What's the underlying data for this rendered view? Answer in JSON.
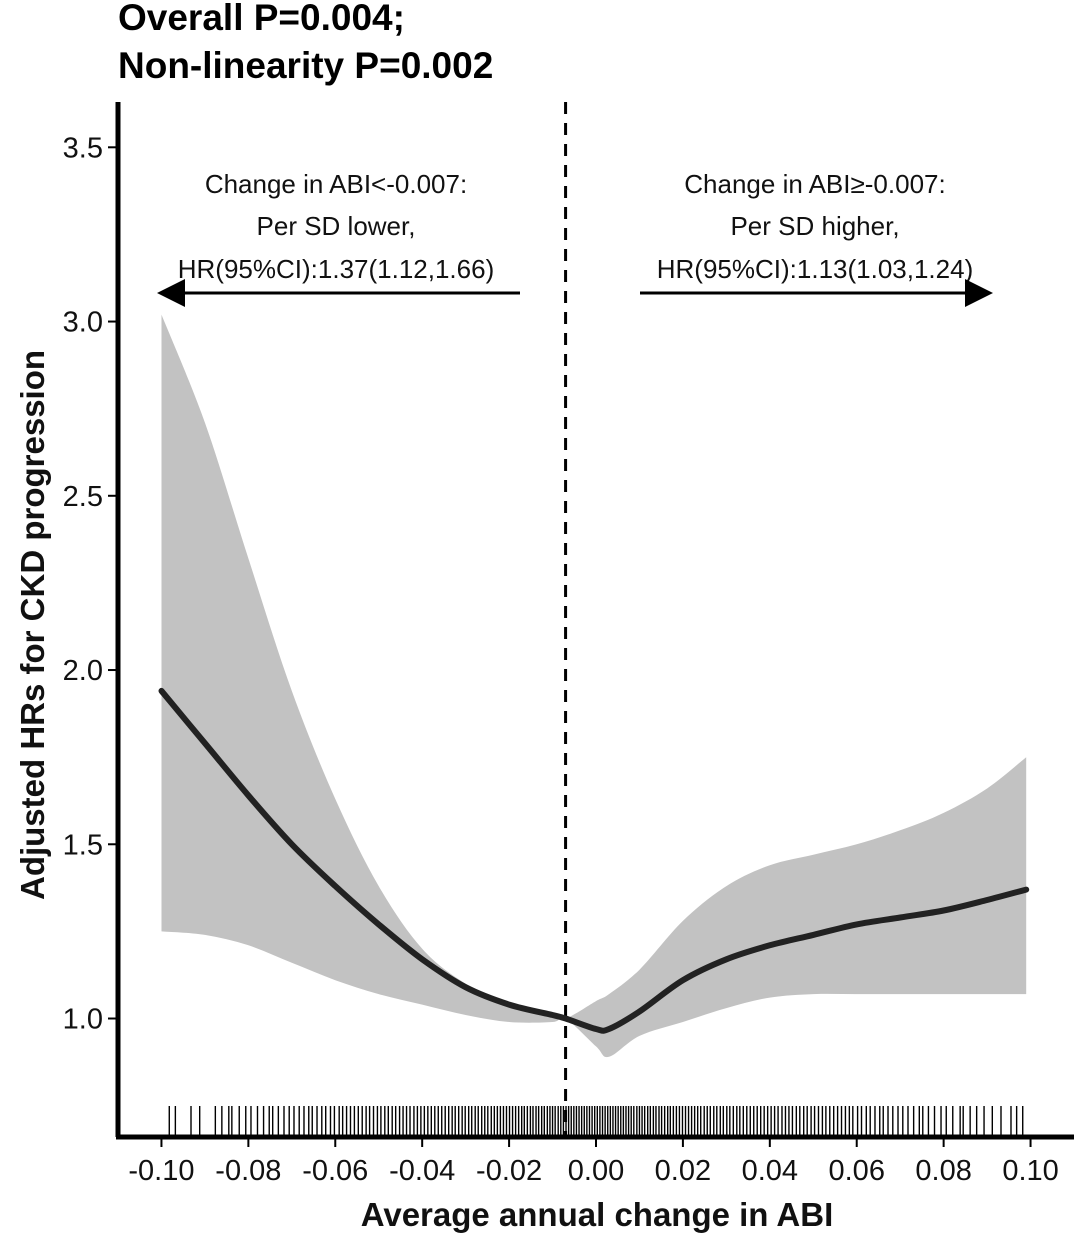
{
  "chart_data": {
    "type": "line",
    "title_lines": [
      "Overall P=0.004;",
      "Non-linearity P=0.002"
    ],
    "xlabel": "Average annual change in ABI",
    "ylabel": "Adjusted HRs for CKD progression",
    "xlim": [
      -0.11,
      0.11
    ],
    "ylim": [
      0.66,
      3.63
    ],
    "x_ticks": [
      -0.1,
      -0.08,
      -0.06,
      -0.04,
      -0.02,
      0.0,
      0.02,
      0.04,
      0.06,
      0.08,
      0.1
    ],
    "x_tick_labels": [
      "-0.10",
      "-0.08",
      "-0.06",
      "-0.04",
      "-0.02",
      "0.00",
      "0.02",
      "0.04",
      "0.06",
      "0.08",
      "0.10"
    ],
    "y_ticks": [
      1.0,
      1.5,
      2.0,
      2.5,
      3.0,
      3.5
    ],
    "y_tick_labels": [
      "1.0",
      "1.5",
      "2.0",
      "2.5",
      "3.0",
      "3.5"
    ],
    "grid": false,
    "reference_line_x": -0.007,
    "colors": {
      "line": "#222222",
      "band": "#c2c2c2",
      "axis": "#000000"
    },
    "series": [
      {
        "values_x": [
          -0.1,
          -0.09,
          -0.08,
          -0.07,
          -0.06,
          -0.05,
          -0.04,
          -0.03,
          -0.02,
          -0.01,
          -0.007,
          0.0,
          0.003,
          0.01,
          0.02,
          0.03,
          0.04,
          0.05,
          0.06,
          0.07,
          0.08,
          0.09,
          0.099
        ],
        "values_y": [
          1.94,
          1.79,
          1.64,
          1.5,
          1.38,
          1.27,
          1.17,
          1.09,
          1.04,
          1.01,
          1.0,
          0.97,
          0.97,
          1.02,
          1.11,
          1.17,
          1.21,
          1.24,
          1.27,
          1.29,
          1.31,
          1.34,
          1.37
        ],
        "ci_lower": [
          1.25,
          1.24,
          1.21,
          1.16,
          1.11,
          1.07,
          1.04,
          1.01,
          0.99,
          0.99,
          1.0,
          0.92,
          0.89,
          0.95,
          0.99,
          1.03,
          1.06,
          1.07,
          1.07,
          1.07,
          1.07,
          1.07,
          1.07
        ],
        "ci_upper": [
          3.02,
          2.71,
          2.32,
          1.94,
          1.63,
          1.38,
          1.2,
          1.1,
          1.04,
          1.01,
          1.0,
          1.05,
          1.07,
          1.14,
          1.28,
          1.38,
          1.44,
          1.47,
          1.5,
          1.54,
          1.59,
          1.66,
          1.75
        ]
      }
    ],
    "annotations": [
      {
        "lines": [
          "Change in ABI<-0.007:",
          "Per SD lower,",
          "HR(95%CI):1.37(1.12,1.66)"
        ],
        "arrow_direction": "left"
      },
      {
        "lines": [
          "Change in ABI≥-0.007:",
          "Per SD higher,",
          "HR(95%CI):1.13(1.03,1.24)"
        ],
        "arrow_direction": "right"
      }
    ],
    "rug_x": [
      -0.0982,
      -0.0968,
      -0.0932,
      -0.0912,
      -0.0876,
      -0.0861,
      -0.0845,
      -0.0838,
      -0.0821,
      -0.0806,
      -0.0794,
      -0.0779,
      -0.0765,
      -0.0752,
      -0.0744,
      -0.0731,
      -0.0718,
      -0.0706,
      -0.0695,
      -0.0683,
      -0.0672,
      -0.0661,
      -0.0653,
      -0.0642,
      -0.0631,
      -0.0622,
      -0.0611,
      -0.0602,
      -0.0591,
      -0.0583,
      -0.0574,
      -0.0565,
      -0.0556,
      -0.0547,
      -0.0538,
      -0.0529,
      -0.0521,
      -0.0512,
      -0.0503,
      -0.0495,
      -0.0486,
      -0.0478,
      -0.0469,
      -0.0461,
      -0.0452,
      -0.0444,
      -0.0436,
      -0.0428,
      -0.0419,
      -0.0411,
      -0.0403,
      -0.0395,
      -0.0387,
      -0.0379,
      -0.0371,
      -0.0363,
      -0.0355,
      -0.0347,
      -0.0339,
      -0.0331,
      -0.0324,
      -0.0316,
      -0.0308,
      -0.0301,
      -0.0293,
      -0.0286,
      -0.0278,
      -0.0271,
      -0.0263,
      -0.0256,
      -0.0249,
      -0.0241,
      -0.0234,
      -0.0227,
      -0.022,
      -0.0213,
      -0.0206,
      -0.0199,
      -0.0192,
      -0.0185,
      -0.0178,
      -0.0171,
      -0.0165,
      -0.0158,
      -0.0151,
      -0.0145,
      -0.0138,
      -0.0132,
      -0.0125,
      -0.0119,
      -0.0112,
      -0.0106,
      -0.01,
      -0.0094,
      -0.0087,
      -0.0081,
      -0.0075,
      -0.0069,
      -0.0063,
      -0.0057,
      -0.0051,
      -0.0045,
      -0.0039,
      -0.0033,
      -0.0027,
      -0.0021,
      -0.0015,
      -0.0009,
      -0.0003,
      0.0003,
      0.0009,
      0.0015,
      0.0021,
      0.0027,
      0.0033,
      0.0039,
      0.0045,
      0.0051,
      0.0057,
      0.0063,
      0.0069,
      0.0075,
      0.0081,
      0.0087,
      0.0094,
      0.01,
      0.0106,
      0.0112,
      0.0119,
      0.0125,
      0.0132,
      0.0138,
      0.0145,
      0.0151,
      0.0158,
      0.0165,
      0.0171,
      0.0178,
      0.0185,
      0.0192,
      0.0199,
      0.0206,
      0.0213,
      0.022,
      0.0227,
      0.0234,
      0.0241,
      0.0249,
      0.0256,
      0.0263,
      0.0271,
      0.0278,
      0.0286,
      0.0293,
      0.0301,
      0.0308,
      0.0316,
      0.0324,
      0.0331,
      0.0339,
      0.0347,
      0.0355,
      0.0363,
      0.0371,
      0.0379,
      0.0387,
      0.0395,
      0.0403,
      0.0411,
      0.0419,
      0.0428,
      0.0436,
      0.0444,
      0.0452,
      0.0461,
      0.0469,
      0.0478,
      0.0486,
      0.0495,
      0.0503,
      0.0512,
      0.0521,
      0.0529,
      0.0538,
      0.0547,
      0.0556,
      0.0565,
      0.0574,
      0.0583,
      0.0591,
      0.0602,
      0.0611,
      0.0622,
      0.0631,
      0.0642,
      0.0653,
      0.0661,
      0.0672,
      0.0683,
      0.0695,
      0.0706,
      0.0718,
      0.0731,
      0.0744,
      0.0752,
      0.0765,
      0.0779,
      0.0794,
      0.0806,
      0.0821,
      0.0838,
      0.0845,
      0.0861,
      0.0876,
      0.0893,
      0.0912,
      0.0932,
      0.0955,
      0.0968,
      0.0982
    ]
  }
}
